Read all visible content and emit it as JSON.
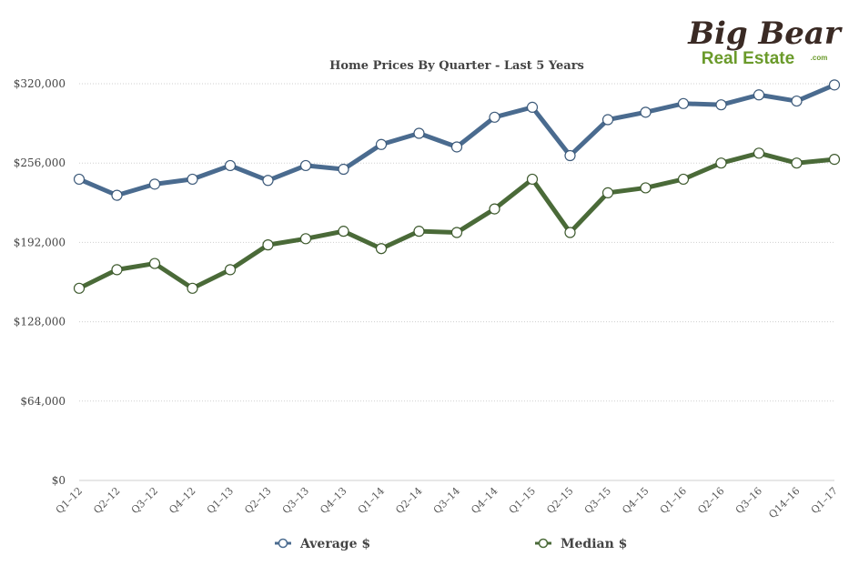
{
  "logo": {
    "line1": "Big Bear",
    "line2": "Real Estate",
    "suffix": ".com",
    "colors": {
      "dark": "#3a2a24",
      "green": "#6a9a2a"
    }
  },
  "chart_data": {
    "type": "line",
    "title": "Home Prices By Quarter - Last 5 Years",
    "xlabel": "",
    "ylabel": "",
    "categories": [
      "Q1–12",
      "Q2–12",
      "Q3–12",
      "Q4–12",
      "Q1–13",
      "Q2–13",
      "Q3–13",
      "Q4–13",
      "Q1–14",
      "Q2–14",
      "Q3–14",
      "Q4–14",
      "Q1–15",
      "Q2–15",
      "Q3–15",
      "Q4–15",
      "Q1–16",
      "Q2–16",
      "Q3–16",
      "Q14–16",
      "Q1–17"
    ],
    "y_ticks": [
      "$0",
      "$64,000",
      "$128,000",
      "$192,000",
      "$256,000",
      "$320,000"
    ],
    "ylim": [
      0,
      320000
    ],
    "grid": true,
    "legend_position": "bottom",
    "series": [
      {
        "name": "Average $",
        "color": "#4a6b8f",
        "values": [
          243000,
          230000,
          239000,
          243000,
          254000,
          242000,
          254000,
          251000,
          271000,
          280000,
          269000,
          293000,
          301000,
          262000,
          291000,
          297000,
          304000,
          303000,
          311000,
          306000,
          319000
        ]
      },
      {
        "name": "Median $",
        "color": "#4a6a38",
        "values": [
          155000,
          170000,
          175000,
          155000,
          170000,
          190000,
          195000,
          201000,
          187000,
          201000,
          200000,
          219000,
          243000,
          200000,
          232000,
          236000,
          243000,
          256000,
          264000,
          256000,
          259000
        ]
      }
    ]
  }
}
